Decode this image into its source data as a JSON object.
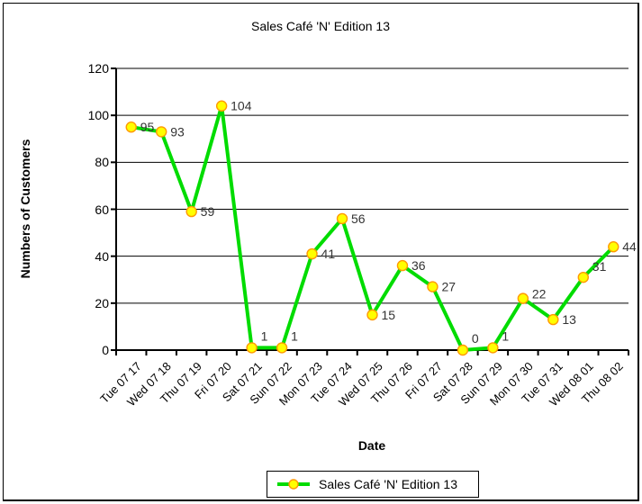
{
  "chart_data": {
    "type": "line",
    "title": "Sales Café 'N' Edition 13",
    "xlabel": "Date",
    "ylabel": "Numbers of Customers",
    "legend": {
      "label": "Sales Café 'N' Edition 13",
      "position": "bottom"
    },
    "categories": [
      "Tue 07 17",
      "Wed 07 18",
      "Thu 07 19",
      "Fri 07 20",
      "Sat 07 21",
      "Sun 07 22",
      "Mon 07 23",
      "Tue 07 24",
      "Wed 07 25",
      "Thu 07 26",
      "Fri 07 27",
      "Sat 07 28",
      "Sun 07 29",
      "Mon 07 30",
      "Tue 07 31",
      "Wed 08 01",
      "Thu 08 02"
    ],
    "series": [
      {
        "name": "Sales Café 'N' Edition 13",
        "values": [
          95,
          93,
          59,
          104,
          1,
          1,
          41,
          56,
          15,
          36,
          27,
          0,
          1,
          22,
          13,
          31,
          44
        ]
      }
    ],
    "data_labels": true,
    "label_dy": [
      0,
      0,
      0,
      0,
      -13,
      -13,
      0,
      0,
      0,
      0,
      0,
      -13,
      -13,
      -5,
      0,
      -12,
      0
    ],
    "ylim": [
      0,
      120
    ],
    "yticks": [
      0,
      20,
      40,
      60,
      80,
      100,
      120
    ],
    "grid": "horizontal",
    "colors": {
      "line": "#00DC00",
      "marker_fill": "#FFFF00",
      "marker_stroke": "#FF9900",
      "axis": "#000000",
      "label_text": "#333333"
    }
  }
}
